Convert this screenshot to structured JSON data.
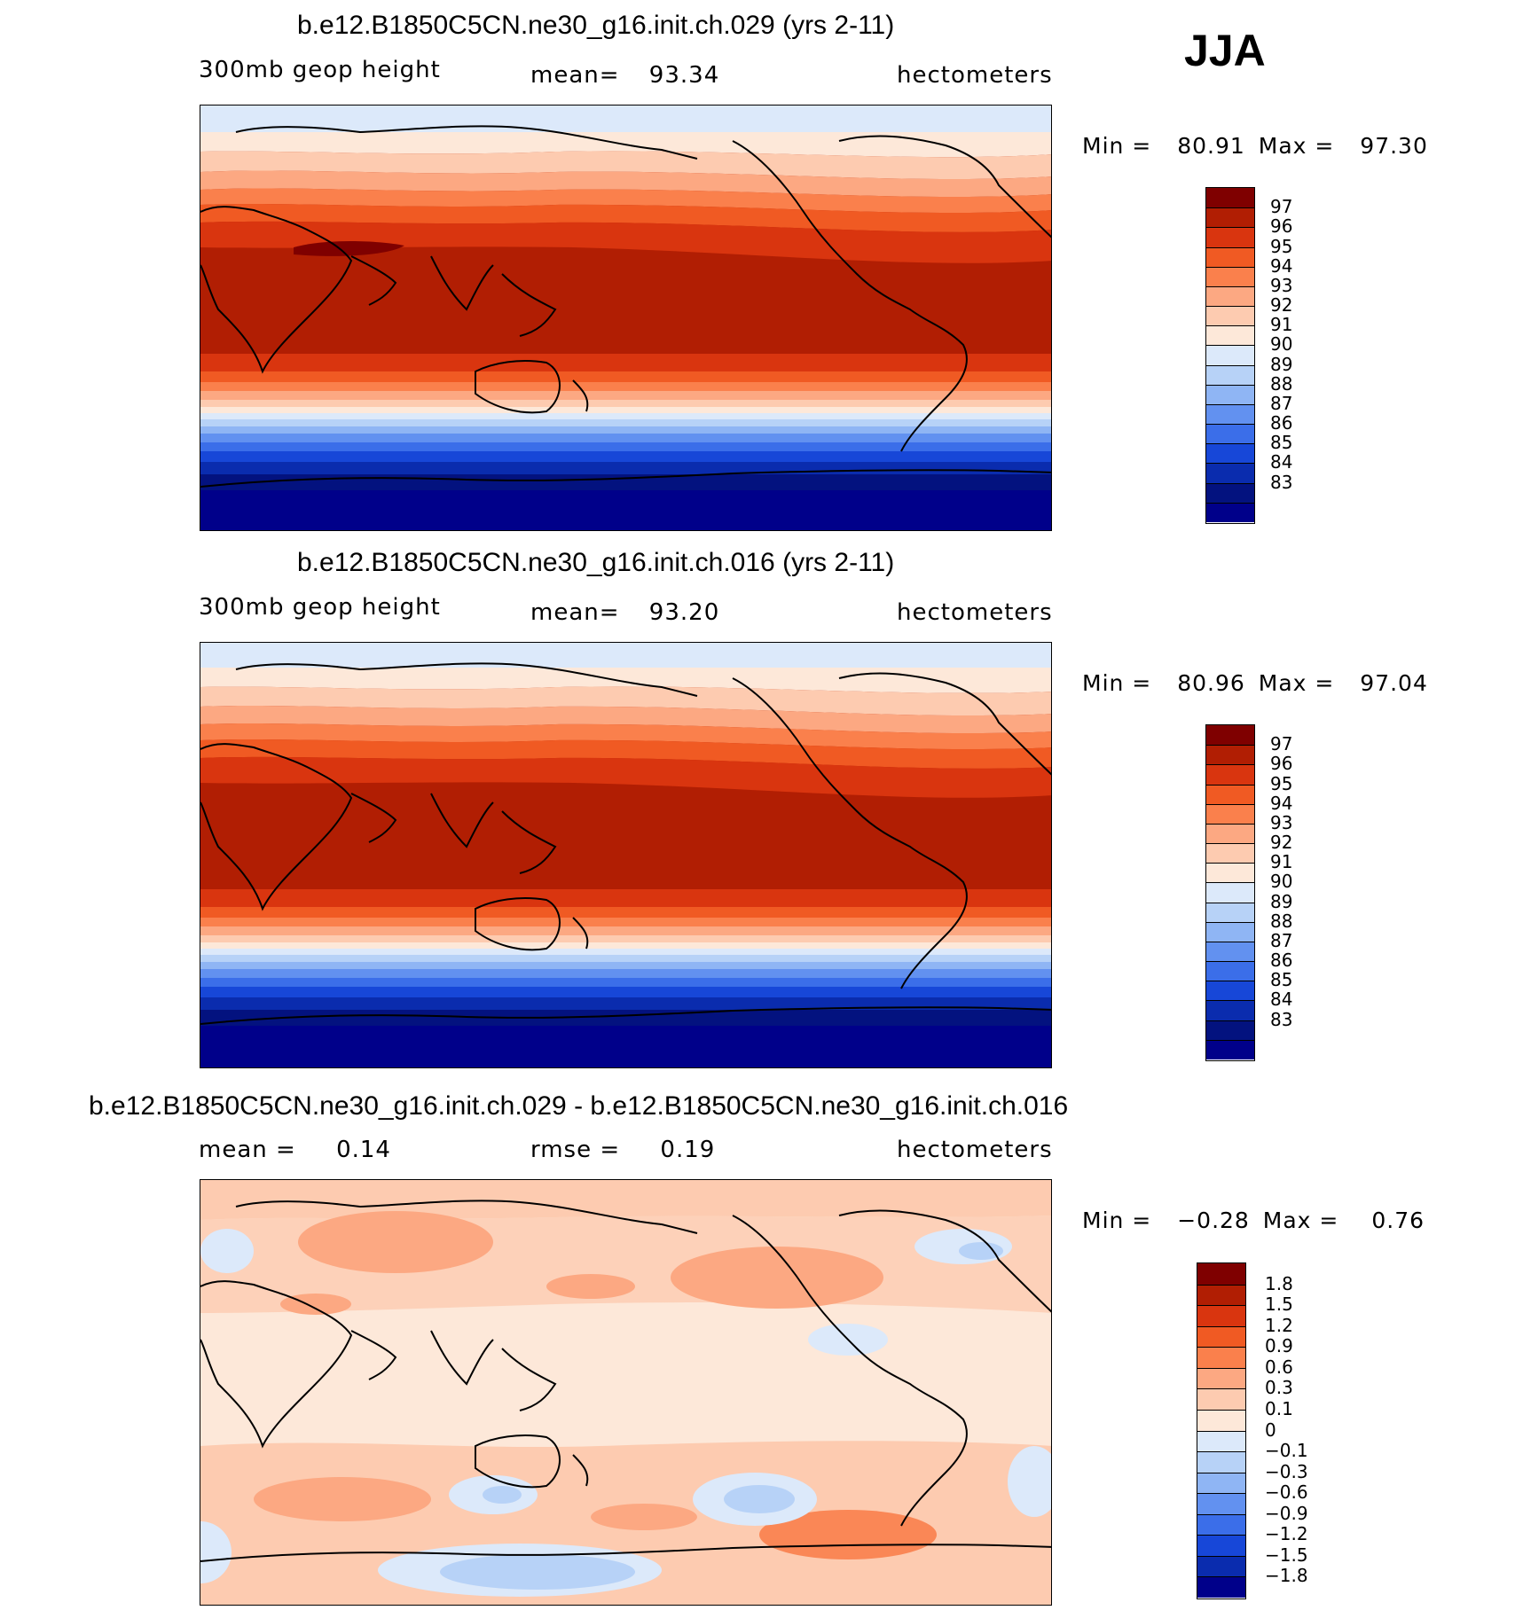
{
  "season": "JJA",
  "colors": {
    "abs_scale": [
      "#7f0000",
      "#b11e03",
      "#d9350f",
      "#f05a23",
      "#fa804c",
      "#fca882",
      "#fdcbb0",
      "#fde8d9",
      "#dce9fa",
      "#b7d2f7",
      "#8fb5f4",
      "#6291f0",
      "#3b6ee9",
      "#1747d8",
      "#0a2cae",
      "#03127f",
      "#00008a"
    ],
    "diff_scale": [
      "#7f0000",
      "#b11e03",
      "#d9350f",
      "#f05a23",
      "#fa804c",
      "#fca882",
      "#fdcbb0",
      "#fde8d9",
      "#dce9fa",
      "#b7d2f7",
      "#8fb5f4",
      "#6291f0",
      "#3b6ee9",
      "#1747d8",
      "#0a2cae",
      "#00008a"
    ]
  },
  "panels": [
    {
      "title": "b.e12.B1850C5CN.ne30_g16.init.ch.029 (yrs 2-11)",
      "left_label": "300mb geop height",
      "center_label": "mean=",
      "center_value": "93.34",
      "units": "hectometers",
      "min_label": "Min =",
      "min_value": "80.91",
      "max_label": "Max =",
      "max_value": "97.30",
      "levels": [
        "97",
        "96",
        "95",
        "94",
        "93",
        "92",
        "91",
        "90",
        "89",
        "88",
        "87",
        "86",
        "85",
        "84",
        "83"
      ]
    },
    {
      "title": "b.e12.B1850C5CN.ne30_g16.init.ch.016 (yrs 2-11)",
      "left_label": "300mb geop height",
      "center_label": "mean=",
      "center_value": "93.20",
      "units": "hectometers",
      "min_label": "Min =",
      "min_value": "80.96",
      "max_label": "Max =",
      "max_value": "97.04",
      "levels": [
        "97",
        "96",
        "95",
        "94",
        "93",
        "92",
        "91",
        "90",
        "89",
        "88",
        "87",
        "86",
        "85",
        "84",
        "83"
      ]
    },
    {
      "title": "b.e12.B1850C5CN.ne30_g16.init.ch.029 - b.e12.B1850C5CN.ne30_g16.init.ch.016",
      "left_label": "mean =",
      "left_value": "0.14",
      "center_label": "rmse =",
      "center_value": "0.19",
      "units": "hectometers",
      "min_label": "Min =",
      "min_value": "−0.28",
      "max_label": "Max =",
      "max_value": "0.76",
      "levels": [
        "1.8",
        "1.5",
        "1.2",
        "0.9",
        "0.6",
        "0.3",
        "0.1",
        "0",
        "−0.1",
        "−0.3",
        "−0.6",
        "−0.9",
        "−1.2",
        "−1.5",
        "−1.8"
      ]
    }
  ]
}
